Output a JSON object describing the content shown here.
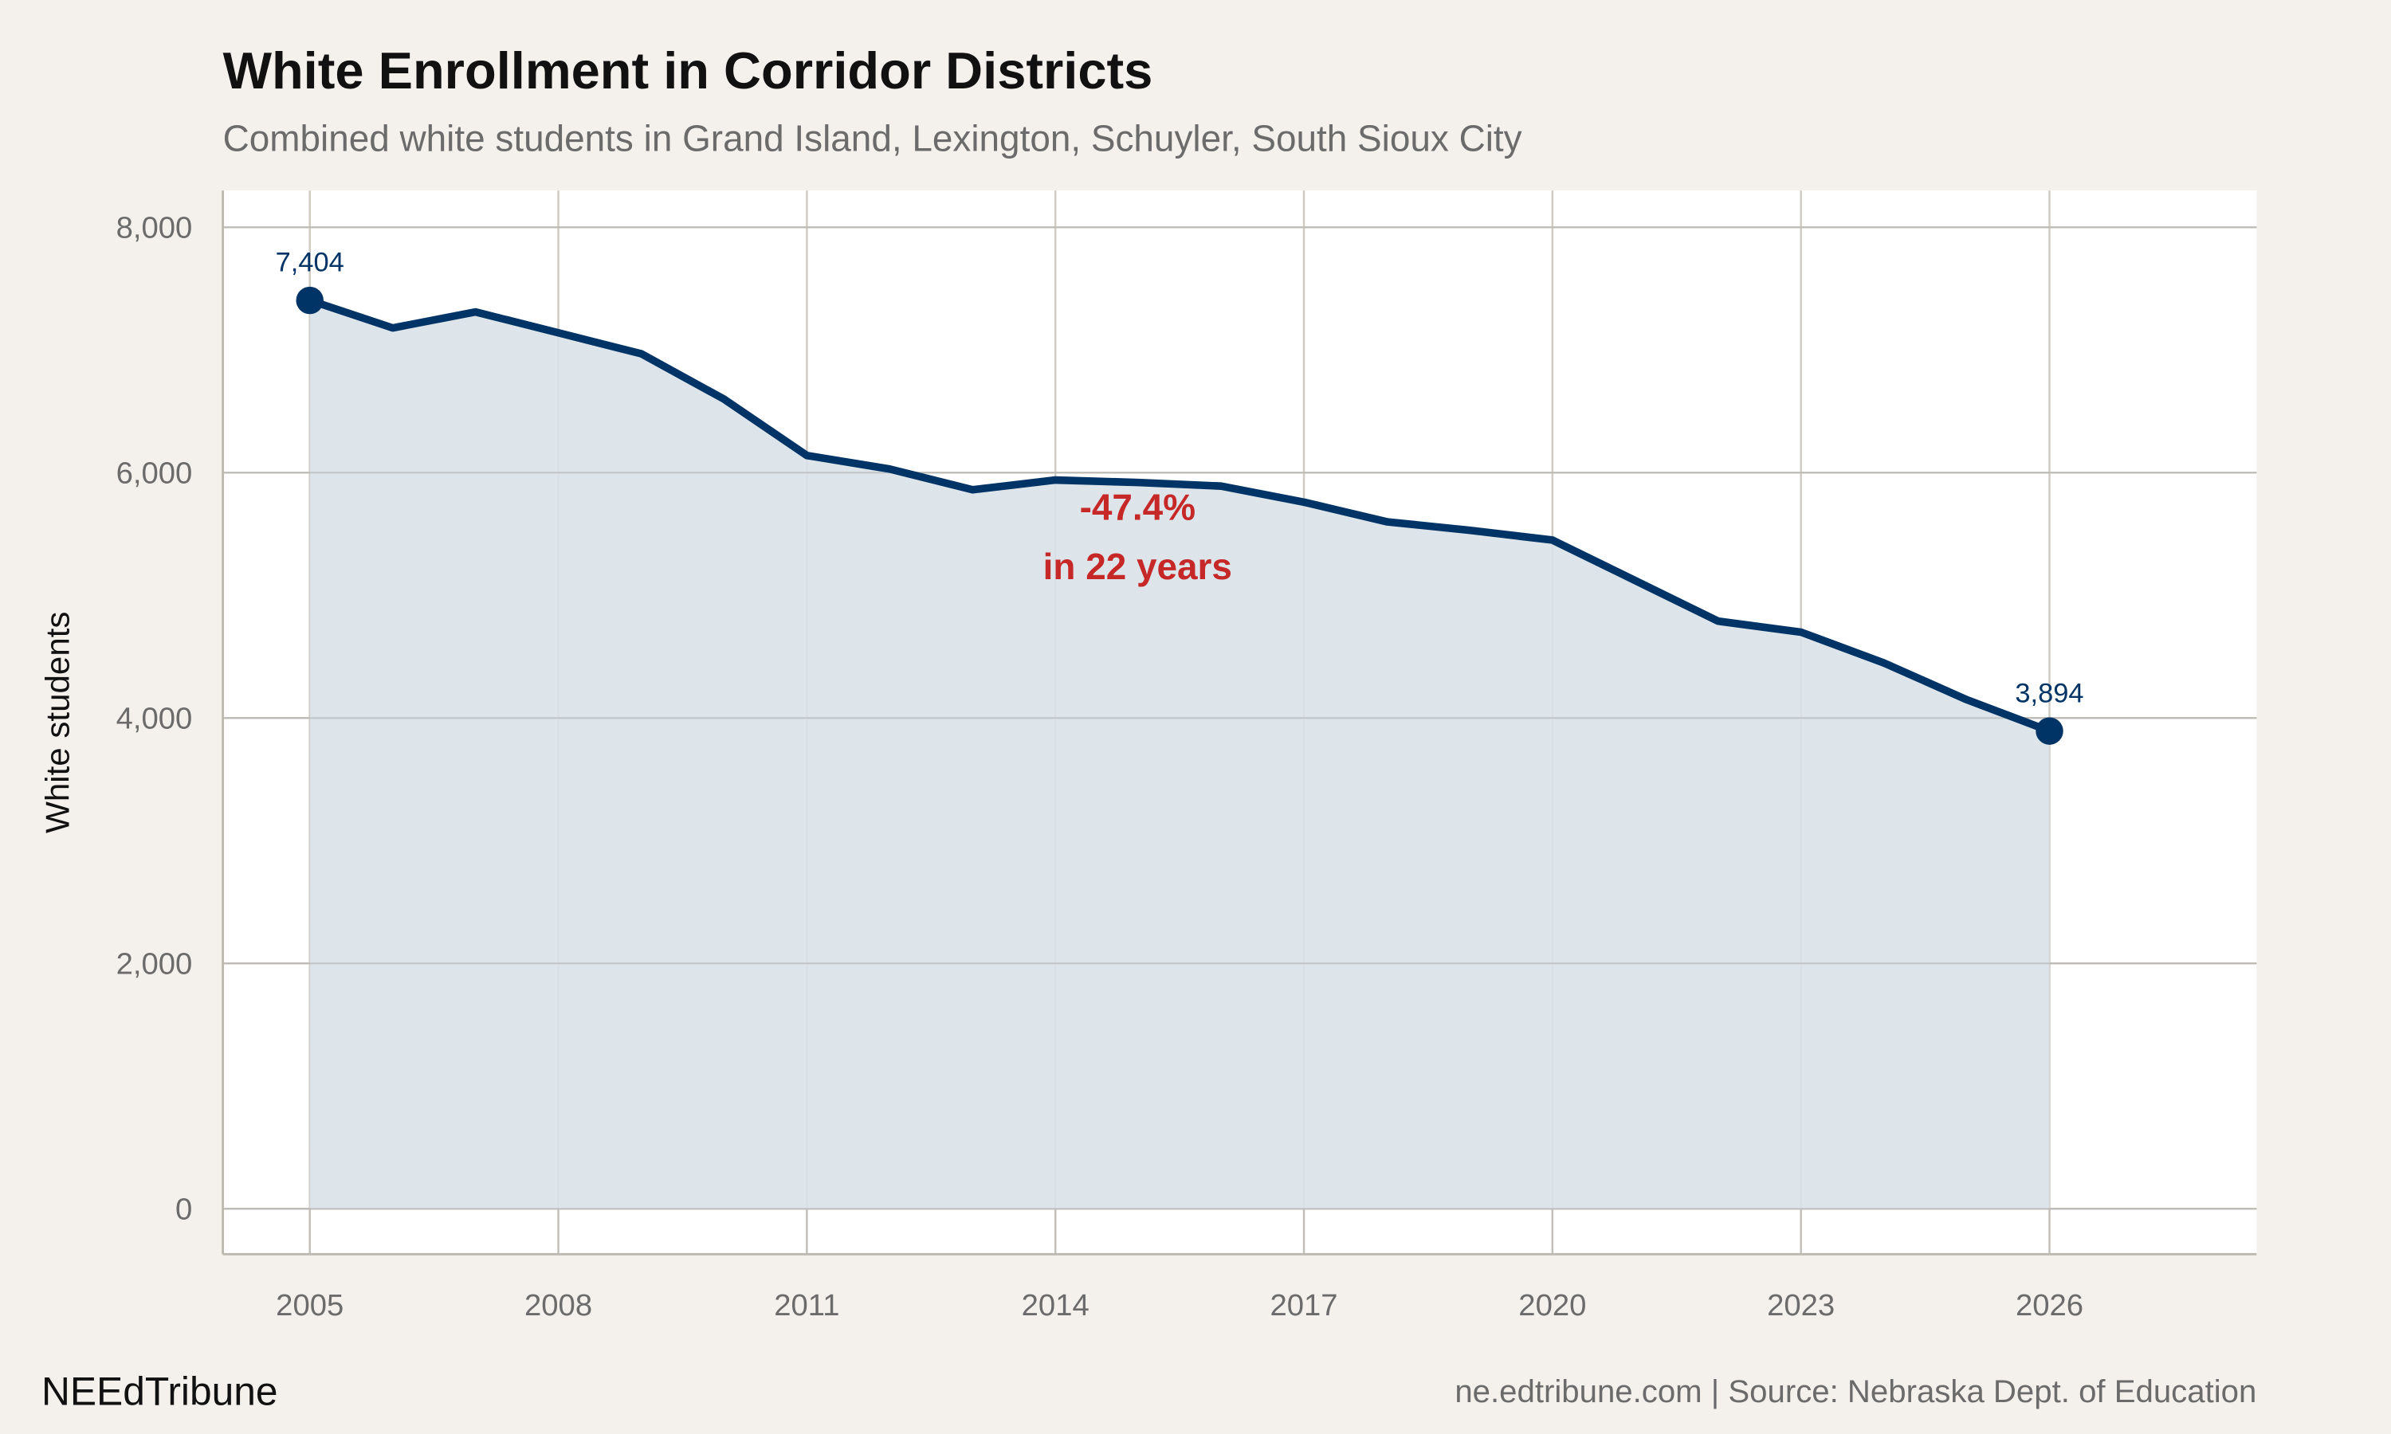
{
  "chart_data": {
    "type": "area",
    "title": "White Enrollment in Corridor Districts",
    "subtitle": "Combined white students in Grand Island, Lexington, Schuyler, South Sioux City",
    "xlabel": "",
    "ylabel": "White students",
    "x": [
      2005,
      2006,
      2007,
      2008,
      2009,
      2010,
      2011,
      2012,
      2013,
      2014,
      2015,
      2016,
      2017,
      2018,
      2019,
      2020,
      2021,
      2022,
      2023,
      2024,
      2025,
      2026
    ],
    "values": [
      7404,
      7180,
      7310,
      7140,
      6970,
      6600,
      6140,
      6030,
      5860,
      5940,
      5920,
      5890,
      5760,
      5600,
      5530,
      5450,
      5120,
      4790,
      4700,
      4450,
      4150,
      3894
    ],
    "xticks": [
      "2005",
      "2008",
      "2011",
      "2014",
      "2017",
      "2020",
      "2023",
      "2026"
    ],
    "yticks": [
      "0",
      "2,000",
      "4,000",
      "6,000",
      "8,000"
    ],
    "ylim": [
      -370,
      8300
    ],
    "xlim": [
      2003.95,
      2028.5
    ],
    "grid": true,
    "point_labels": [
      {
        "x": 2005,
        "label": "7,404"
      },
      {
        "x": 2026,
        "label": "3,894"
      }
    ],
    "annotation": {
      "line1": "-47.4%",
      "line2": "in 22 years"
    },
    "colors": {
      "line": "#003366",
      "fill": "#d9e1e8",
      "annotation": "#c62828",
      "background": "#f4f1ec",
      "panel": "#ffffff",
      "grid": "#cfcac2"
    }
  },
  "footer": {
    "brand": "NEEdTribune",
    "caption": "ne.edtribune.com | Source: Nebraska Dept. of Education"
  }
}
